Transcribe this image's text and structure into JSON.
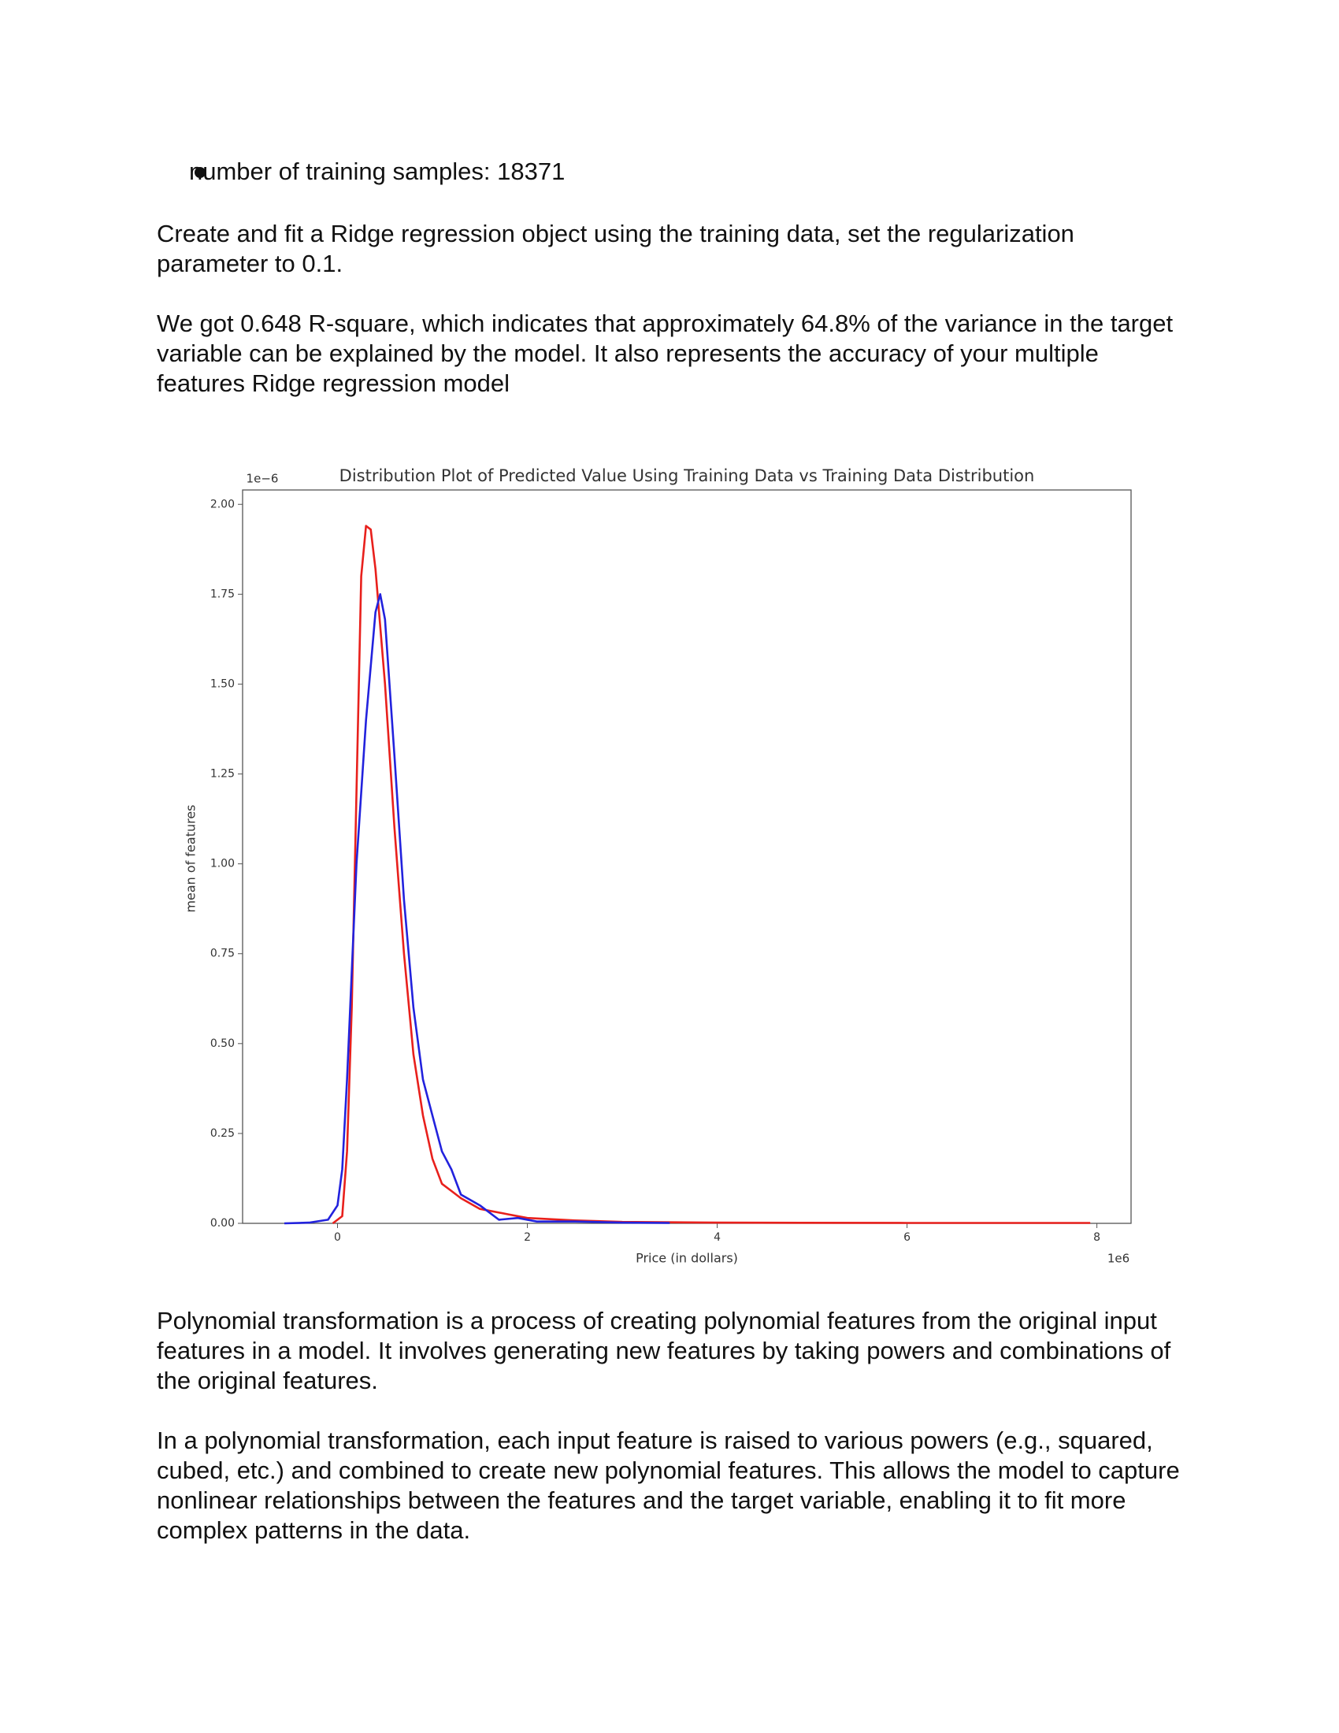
{
  "bullet": "number of training samples: 18371",
  "paragraphs": [
    "Create and fit a Ridge regression object using the training data, set the regularization parameter to 0.1.",
    "We got 0.648 R-square, which indicates that approximately 64.8% of the variance in the target variable can be explained by the model. It also represents the accuracy of your multiple features Ridge regression model",
    "Polynomial transformation is a process of creating polynomial features from the original input features in a model. It involves generating new features by taking powers and combinations of the original features.",
    "In a polynomial transformation, each input feature is raised to various powers (e.g., squared, cubed, etc.) and combined to create new polynomial features. This allows the model to capture nonlinear relationships between the features and the target variable, enabling it to fit more complex patterns in the data."
  ],
  "chart_data": {
    "type": "line",
    "title": "Distribution  Plot of  Predicted Value Using Training Data vs Training Data Distribution",
    "xlabel": "Price (in dollars)",
    "ylabel": "mean of features",
    "x_offset_label": "1e6",
    "y_offset_label": "1e−6",
    "xlim": [
      -1.0,
      8.36
    ],
    "ylim": [
      0,
      2.04
    ],
    "xticks": [
      0,
      2,
      4,
      6,
      8
    ],
    "yticks": [
      {
        "value": 0,
        "label": "0.00"
      },
      {
        "value": 0.25,
        "label": "0.25"
      },
      {
        "value": 0.5,
        "label": "0.50"
      },
      {
        "value": 0.75,
        "label": "0.75"
      },
      {
        "value": 1,
        "label": "1.00"
      },
      {
        "value": 1.25,
        "label": "1.25"
      },
      {
        "value": 1.5,
        "label": "1.50"
      },
      {
        "value": 1.75,
        "label": "1.75"
      },
      {
        "value": 2,
        "label": "2.00"
      }
    ],
    "series": [
      {
        "color": "#e8201c",
        "x": [
          -0.05,
          0.05,
          0.1,
          0.15,
          0.2,
          0.25,
          0.3,
          0.35,
          0.4,
          0.5,
          0.6,
          0.7,
          0.8,
          0.9,
          1.0,
          1.1,
          1.2,
          1.3,
          1.5,
          1.8,
          2.0,
          2.5,
          3,
          4,
          6,
          7.93
        ],
        "values": [
          0,
          0.02,
          0.2,
          0.6,
          1.2,
          1.8,
          1.94,
          1.93,
          1.82,
          1.5,
          1.1,
          0.75,
          0.47,
          0.3,
          0.18,
          0.11,
          0.09,
          0.07,
          0.04,
          0.025,
          0.015,
          0.008,
          0.004,
          0.002,
          0.001,
          0.001
        ]
      },
      {
        "color": "#2222dd",
        "x": [
          -0.56,
          -0.3,
          -0.1,
          0,
          0.05,
          0.1,
          0.2,
          0.3,
          0.4,
          0.45,
          0.5,
          0.6,
          0.7,
          0.8,
          0.9,
          1.0,
          1.1,
          1.2,
          1.3,
          1.5,
          1.7,
          1.9,
          2.1,
          2.5,
          3,
          3.5
        ],
        "values": [
          0,
          0.002,
          0.01,
          0.05,
          0.15,
          0.4,
          1.0,
          1.4,
          1.7,
          1.75,
          1.68,
          1.3,
          0.9,
          0.6,
          0.4,
          0.3,
          0.2,
          0.15,
          0.08,
          0.05,
          0.01,
          0.015,
          0.005,
          0.005,
          0.002,
          0.001
        ]
      }
    ]
  }
}
